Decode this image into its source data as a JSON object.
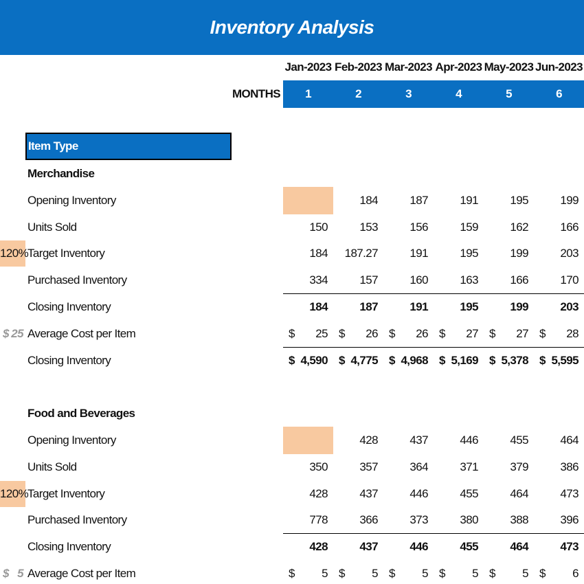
{
  "title": "Inventory Analysis",
  "dates": [
    "Jan-2023",
    "Feb-2023",
    "Mar-2023",
    "Apr-2023",
    "May-2023",
    "Jun-2023"
  ],
  "months_label": "MONTHS",
  "months": [
    1,
    2,
    3,
    4,
    5,
    6
  ],
  "item_type_label": "Item Type",
  "currency_symbol": "$",
  "sections": [
    {
      "name": "Merchandise",
      "rows": [
        {
          "label": "Opening Inventory",
          "values": [
            null,
            184,
            187,
            191,
            195,
            199
          ]
        },
        {
          "label": "Units Sold",
          "values": [
            150,
            153,
            156,
            159,
            162,
            166
          ]
        },
        {
          "label": "Target Inventory",
          "input_pct": "120%",
          "values": [
            184,
            187.27,
            191,
            195,
            199,
            203
          ]
        },
        {
          "label": "Purchased Inventory",
          "values": [
            334,
            157,
            160,
            163,
            166,
            170
          ]
        },
        {
          "label": "Closing Inventory",
          "bold": true,
          "values": [
            184,
            187,
            191,
            195,
            199,
            203
          ]
        },
        {
          "label": "Average Cost per Item",
          "input_cost": 25,
          "currency": true,
          "values": [
            25,
            26,
            26,
            27,
            27,
            28
          ]
        },
        {
          "label": "Closing Inventory",
          "bold": true,
          "currency": true,
          "values": [
            "4,590",
            "4,775",
            "4,968",
            "5,169",
            "5,378",
            "5,595"
          ]
        }
      ]
    },
    {
      "name": "Food and Beverages",
      "rows": [
        {
          "label": "Opening Inventory",
          "values": [
            null,
            428,
            437,
            446,
            455,
            464
          ]
        },
        {
          "label": "Units Sold",
          "values": [
            350,
            357,
            364,
            371,
            379,
            386
          ]
        },
        {
          "label": "Target Inventory",
          "input_pct": "120%",
          "values": [
            428,
            437,
            446,
            455,
            464,
            473
          ]
        },
        {
          "label": "Purchased Inventory",
          "values": [
            778,
            366,
            373,
            380,
            388,
            396
          ]
        },
        {
          "label": "Closing Inventory",
          "bold": true,
          "values": [
            428,
            437,
            446,
            455,
            464,
            473
          ]
        },
        {
          "label": "Average Cost per Item",
          "input_cost": 5,
          "currency": true,
          "values": [
            5,
            5,
            5,
            5,
            5,
            6
          ]
        }
      ]
    }
  ]
}
